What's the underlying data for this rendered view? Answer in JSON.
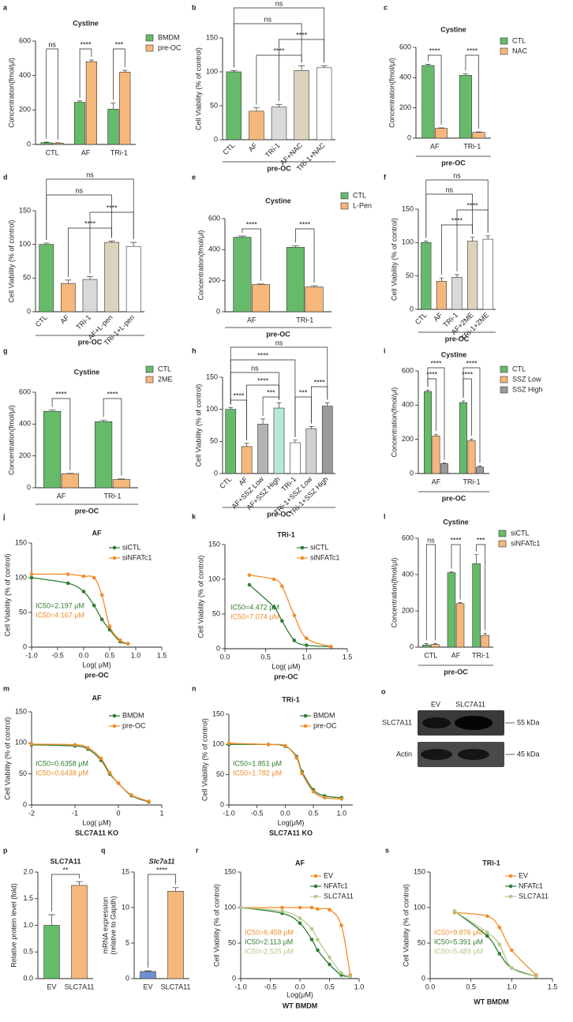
{
  "chart_data": [
    {
      "type": "bar",
      "panel": "a",
      "title": "Cystine",
      "ylabel": "Concentration(fmol/μl)",
      "categories": [
        "CTL",
        "AF",
        "TRi-1"
      ],
      "series": [
        {
          "name": "BMDM",
          "color": "#66bb6a",
          "values": [
            10,
            245,
            205
          ],
          "errors": [
            3,
            8,
            35
          ]
        },
        {
          "name": "pre-OC",
          "color": "#f6b77b",
          "values": [
            8,
            480,
            420
          ],
          "errors": [
            2,
            10,
            10
          ]
        }
      ],
      "ylim": [
        0,
        600
      ],
      "yticks": [
        0,
        200,
        400,
        600
      ],
      "brackets": [
        "ns",
        "****",
        "***"
      ]
    },
    {
      "type": "bar",
      "panel": "b",
      "ylabel": "Cell Viability (% of control)",
      "categories": [
        "CTL",
        "AF",
        "TRi-1",
        "AF+NAC",
        "TRi-1+NAC"
      ],
      "values": [
        100,
        42,
        48,
        102,
        106
      ],
      "errors": [
        2,
        5,
        4,
        7,
        3
      ],
      "colors": [
        "#66bb6a",
        "#f6b77b",
        "#d9d9d9",
        "#ddd3bd",
        "#ffffff"
      ],
      "ylim": [
        0,
        150
      ],
      "yticks": [
        0,
        50,
        100,
        150
      ],
      "group": "pre-OC",
      "brackets": [
        "ns",
        "ns",
        "****",
        "****"
      ]
    },
    {
      "type": "bar",
      "panel": "c",
      "title": "Cystine",
      "ylabel": "Concentration(fmol/μl)",
      "categories": [
        "AF",
        "TRi-1"
      ],
      "series": [
        {
          "name": "CTL",
          "color": "#66bb6a",
          "values": [
            480,
            415
          ],
          "errors": [
            8,
            10
          ]
        },
        {
          "name": "NAC",
          "color": "#f6b77b",
          "values": [
            65,
            38
          ],
          "errors": [
            3,
            3
          ]
        }
      ],
      "ylim": [
        0,
        600
      ],
      "yticks": [
        0,
        200,
        400,
        600
      ],
      "group": "pre-OC",
      "brackets": [
        "****",
        "****"
      ]
    },
    {
      "type": "bar",
      "panel": "d",
      "ylabel": "Cell Viability (% of control)",
      "categories": [
        "CTL",
        "AF",
        "TRi-1",
        "AF+L-pen",
        "TRi-1+L-pen"
      ],
      "values": [
        100,
        42,
        48,
        103,
        97
      ],
      "errors": [
        2,
        5,
        4,
        2,
        6
      ],
      "colors": [
        "#66bb6a",
        "#f6b77b",
        "#d9d9d9",
        "#ddd3bd",
        "#ffffff"
      ],
      "ylim": [
        0,
        150
      ],
      "yticks": [
        0,
        50,
        100,
        150
      ],
      "group": "pre-OC",
      "brackets": [
        "ns",
        "ns",
        "****",
        "****"
      ]
    },
    {
      "type": "bar",
      "panel": "e",
      "title": "Cystine",
      "ylabel": "Concentration(fmol/μl)",
      "categories": [
        "AF",
        "TRi-1"
      ],
      "series": [
        {
          "name": "CTL",
          "color": "#66bb6a",
          "values": [
            480,
            415
          ],
          "errors": [
            8,
            10
          ]
        },
        {
          "name": "L-Pen",
          "color": "#f6b77b",
          "values": [
            175,
            160
          ],
          "errors": [
            4,
            8
          ]
        }
      ],
      "ylim": [
        0,
        600
      ],
      "yticks": [
        0,
        200,
        400,
        600
      ],
      "group": "pre-OC",
      "brackets": [
        "****",
        "****"
      ]
    },
    {
      "type": "bar",
      "panel": "f",
      "ylabel": "Cell Viability (% of control)",
      "categories": [
        "CTL",
        "AF",
        "TRi-1",
        "AF+2ME",
        "TRi-1+2ME"
      ],
      "values": [
        100,
        42,
        48,
        102,
        105
      ],
      "errors": [
        2,
        5,
        4,
        6,
        5
      ],
      "colors": [
        "#66bb6a",
        "#f6b77b",
        "#d9d9d9",
        "#ddd3bd",
        "#ffffff"
      ],
      "ylim": [
        0,
        150
      ],
      "yticks": [
        0,
        50,
        100,
        150
      ],
      "group": "pre-OC",
      "brackets": [
        "ns",
        "ns",
        "****",
        "****"
      ]
    },
    {
      "type": "bar",
      "panel": "g",
      "title": "Cystine",
      "ylabel": "Concentration(fmol/μl)",
      "categories": [
        "AF",
        "TRi-1"
      ],
      "series": [
        {
          "name": "CTL",
          "color": "#66bb6a",
          "values": [
            480,
            415
          ],
          "errors": [
            8,
            10
          ]
        },
        {
          "name": "2ME",
          "color": "#f6b77b",
          "values": [
            88,
            52
          ],
          "errors": [
            2,
            3
          ]
        }
      ],
      "ylim": [
        0,
        600
      ],
      "yticks": [
        0,
        200,
        400,
        600
      ],
      "group": "pre-OC",
      "brackets": [
        "****",
        "****"
      ]
    },
    {
      "type": "bar",
      "panel": "h",
      "ylabel": "Cell Viability (% of control)",
      "categories": [
        "CTL",
        "AF",
        "AF+SSZ Low",
        "AF+SSZ High",
        "TRi-1",
        "TRi-1+SSZ Low",
        "TRi-1+SSZ High"
      ],
      "values": [
        100,
        42,
        77,
        102,
        48,
        70,
        105
      ],
      "errors": [
        3,
        5,
        8,
        8,
        4,
        3,
        5
      ],
      "colors": [
        "#66bb6a",
        "#f6b77b",
        "#b3b3b3",
        "#b8e8d6",
        "#ffffff",
        "#d0d0d0",
        "#9a9a9a"
      ],
      "ylim": [
        0,
        150
      ],
      "yticks": [
        0,
        50,
        100,
        150
      ],
      "group": "pre-OC",
      "brackets": [
        "ns",
        "****",
        "ns",
        "****",
        "****",
        "***",
        "***",
        "****"
      ]
    },
    {
      "type": "bar",
      "panel": "i",
      "title": "Cystine",
      "ylabel": "Concentration(fmol/μl)",
      "categories": [
        "AF",
        "TRi-1"
      ],
      "series": [
        {
          "name": "CTL",
          "color": "#66bb6a",
          "values": [
            480,
            415
          ],
          "errors": [
            8,
            10
          ]
        },
        {
          "name": "SSZ Low",
          "color": "#f6b77b",
          "values": [
            220,
            192
          ],
          "errors": [
            10,
            10
          ]
        },
        {
          "name": "SSZ High",
          "color": "#9a9a9a",
          "values": [
            58,
            38
          ],
          "errors": [
            3,
            6
          ]
        }
      ],
      "ylim": [
        0,
        600
      ],
      "yticks": [
        0,
        200,
        400,
        600
      ],
      "group": "pre-OC",
      "brackets": [
        "****",
        "****",
        "****",
        "****"
      ]
    },
    {
      "type": "line",
      "panel": "j",
      "title": "AF",
      "ylabel": "Cell Viability (% of control)",
      "xlabel": "Log( μM)",
      "group": "pre-OC",
      "x": [
        -1,
        -0.3,
        0,
        0.2,
        0.35,
        0.5,
        0.7,
        0.85
      ],
      "series": [
        {
          "name": "siCTL",
          "color": "#2e7d32",
          "values": [
            100,
            92,
            80,
            60,
            40,
            25,
            8,
            5
          ]
        },
        {
          "name": "siNFATc1",
          "color": "#f28c28",
          "values": [
            105,
            105,
            102,
            100,
            75,
            30,
            10,
            5
          ]
        }
      ],
      "annotations": [
        "IC50=2.197 μM",
        "IC50=4.167 μM"
      ],
      "xlim": [
        -1,
        1.5
      ],
      "xticks": [
        {
          "value": -1,
          "label": "-1.0"
        },
        {
          "value": -0.5,
          "label": "-0.5"
        },
        {
          "value": 0,
          "label": "0.0"
        },
        {
          "value": 0.5,
          "label": "0.5"
        },
        {
          "value": 1,
          "label": "1.0"
        },
        {
          "value": 1.5,
          "label": "1.5"
        }
      ],
      "ylim": [
        0,
        150
      ],
      "yticks": [
        0,
        50,
        100,
        150
      ]
    },
    {
      "type": "line",
      "panel": "k",
      "title": "TRi-1",
      "ylabel": "Cell Viability (% of control)",
      "xlabel": "Log( μM)",
      "group": "pre-OC",
      "x": [
        0.3,
        0.6,
        0.7,
        0.85,
        1.0,
        1.3
      ],
      "series": [
        {
          "name": "siCTL",
          "color": "#2e7d32",
          "values": [
            92,
            60,
            40,
            12,
            5,
            3
          ]
        },
        {
          "name": "siNFATc1",
          "color": "#f28c28",
          "values": [
            106,
            100,
            90,
            48,
            15,
            3
          ]
        }
      ],
      "annotations": [
        "IC50=4.472 μM",
        "IC50=7.074 μM"
      ],
      "xlim": [
        0,
        1.5
      ],
      "xticks": [
        {
          "value": 0,
          "label": "0.0"
        },
        {
          "value": 0.5,
          "label": "0.5"
        },
        {
          "value": 1,
          "label": "1.0"
        },
        {
          "value": 1.5,
          "label": "1.5"
        }
      ],
      "ylim": [
        0,
        150
      ],
      "yticks": [
        0,
        50,
        100,
        150
      ]
    },
    {
      "type": "bar",
      "panel": "l",
      "title": "Cystine",
      "ylabel": "Concentration(fmol/μl)",
      "categories": [
        "CTL",
        "AF",
        "TRi-1"
      ],
      "series": [
        {
          "name": "siCTL",
          "color": "#66bb6a",
          "values": [
            12,
            410,
            460
          ],
          "errors": [
            8,
            5,
            50
          ]
        },
        {
          "name": "siNFATc1",
          "color": "#f6b77b",
          "values": [
            15,
            240,
            65
          ],
          "errors": [
            5,
            5,
            12
          ]
        }
      ],
      "ylim": [
        0,
        600
      ],
      "yticks": [
        0,
        200,
        400,
        600
      ],
      "group": "pre-OC",
      "brackets": [
        "ns",
        "****",
        "***"
      ]
    },
    {
      "type": "line",
      "panel": "m",
      "title": "AF",
      "ylabel": "Cell Viability (% of control)",
      "xlabel": "Log( μM)",
      "group": "SLC7A11 KO",
      "x": [
        -2,
        -1,
        -0.7,
        -0.4,
        -0.2,
        0,
        0.3,
        0.7
      ],
      "series": [
        {
          "name": "BMDM",
          "color": "#2e7d32",
          "values": [
            97,
            95,
            90,
            72,
            50,
            35,
            15,
            5
          ]
        },
        {
          "name": "pre-OC",
          "color": "#f28c28",
          "values": [
            98,
            97,
            92,
            75,
            52,
            35,
            16,
            6
          ]
        }
      ],
      "annotations": [
        "IC50=0.6358 μM",
        "IC50=0.6438 μM"
      ],
      "xlim": [
        -2,
        1
      ],
      "xticks": [
        -2,
        -1,
        0,
        1
      ],
      "ylim": [
        0,
        150
      ],
      "yticks": [
        0,
        50,
        100,
        150
      ]
    },
    {
      "type": "line",
      "panel": "n",
      "title": "TRi-1",
      "ylabel": "Cell Viability (% of control)",
      "xlabel": "Log(μM)",
      "group": "SLC7A11 KO",
      "x": [
        -1,
        -0.3,
        0,
        0.2,
        0.3,
        0.5,
        0.7,
        1.0
      ],
      "series": [
        {
          "name": "BMDM",
          "color": "#2e7d32",
          "values": [
            100,
            100,
            97,
            80,
            55,
            25,
            15,
            12
          ]
        },
        {
          "name": "pre-OC",
          "color": "#f28c28",
          "values": [
            102,
            100,
            98,
            78,
            52,
            22,
            12,
            10
          ]
        }
      ],
      "annotations": [
        "IC50=1.851 μM",
        "IC50=1.782 μM"
      ],
      "xlim": [
        -1,
        1.2
      ],
      "xticks": [
        {
          "value": -1,
          "label": "-1.0"
        },
        {
          "value": -0.5,
          "label": "-0.5"
        },
        {
          "value": 0,
          "label": "0.0"
        },
        {
          "value": 0.5,
          "label": "0.5"
        },
        {
          "value": 1,
          "label": "1.0"
        }
      ],
      "ylim": [
        0,
        150
      ],
      "yticks": [
        0,
        50,
        100,
        150
      ]
    },
    {
      "type": "bar",
      "panel": "p",
      "title": "SLC7A11",
      "ylabel": "Relative protein level (fold)",
      "categories": [
        "EV",
        "SLC7A11"
      ],
      "values": [
        1.0,
        1.75
      ],
      "errors": [
        0.2,
        0.07
      ],
      "colors": [
        "#66bb6a",
        "#f6b77b"
      ],
      "ylim": [
        0,
        2
      ],
      "yticks": [
        {
          "value": 0,
          "label": "0.0"
        },
        {
          "value": 0.5,
          "label": "0.5"
        },
        {
          "value": 1,
          "label": "1.0"
        },
        {
          "value": 1.5,
          "label": "1.5"
        },
        {
          "value": 2,
          "label": "2.0"
        }
      ],
      "brackets": [
        "**"
      ]
    },
    {
      "type": "bar",
      "panel": "q",
      "title": "Slc7a11",
      "ylabel": [
        "mRNA expression",
        "(relative to Gapdh)"
      ],
      "categories": [
        "EV",
        "SLC7A11"
      ],
      "values": [
        1,
        12.3
      ],
      "errors": [
        0.1,
        0.5
      ],
      "colors": [
        "#6f8fcf",
        "#f6b77b"
      ],
      "ylim": [
        0,
        15
      ],
      "yticks": [
        0,
        5,
        10,
        15
      ],
      "brackets": [
        "****"
      ]
    },
    {
      "type": "line",
      "panel": "r",
      "title": "AF",
      "ylabel": "Cell Viability (% of control)",
      "xlabel": "Log(μM)",
      "group": "WT BMDM",
      "x": [
        -1,
        -0.3,
        0,
        0.2,
        0.3,
        0.5,
        0.7,
        0.85
      ],
      "series": [
        {
          "name": "EV",
          "color": "#f28c28",
          "values": [
            100,
            100,
            100,
            100,
            98,
            97,
            75,
            5
          ]
        },
        {
          "name": "NFATc1",
          "color": "#2e7d32",
          "values": [
            100,
            92,
            78,
            55,
            40,
            20,
            5,
            3
          ]
        },
        {
          "name": "SLC7A11",
          "color": "#b5c98a",
          "values": [
            100,
            95,
            85,
            70,
            55,
            30,
            8,
            3
          ]
        }
      ],
      "annotations": [
        "IC50=6.459 μM",
        "IC50=2.113 μM",
        "IC50=2.525 μM"
      ],
      "xlim": [
        -1,
        1
      ],
      "xticks": [
        {
          "value": -1,
          "label": "-1.0"
        },
        {
          "value": -0.5,
          "label": "-0.5"
        },
        {
          "value": 0,
          "label": "0.0"
        },
        {
          "value": 0.5,
          "label": "0.5"
        },
        {
          "value": 1,
          "label": "1.0"
        }
      ],
      "ylim": [
        0,
        150
      ],
      "yticks": [
        0,
        50,
        100,
        150
      ]
    },
    {
      "type": "line",
      "panel": "s",
      "title": "TRi-1",
      "ylabel": "Cell Viability (% of control)",
      "group": "WT BMDM",
      "x": [
        0.3,
        0.7,
        0.85,
        1.0,
        1.3
      ],
      "series": [
        {
          "name": "EV",
          "color": "#f28c28",
          "values": [
            93,
            88,
            72,
            40,
            5
          ]
        },
        {
          "name": "NFATc1",
          "color": "#2e7d32",
          "values": [
            95,
            60,
            35,
            15,
            3
          ]
        },
        {
          "name": "SLC7A11",
          "color": "#b5c98a",
          "values": [
            95,
            65,
            48,
            15,
            3
          ]
        }
      ],
      "annotations": [
        "IC50=9.876 μM",
        "IC50=5.391 μM",
        "IC50=5.489 μM"
      ],
      "xlim": [
        0,
        1.5
      ],
      "xticks": [
        {
          "value": 0,
          "label": "0.0"
        },
        {
          "value": 0.5,
          "label": "0.5"
        },
        {
          "value": 1,
          "label": "1.0"
        },
        {
          "value": 1.5,
          "label": "1.5"
        }
      ],
      "ylim": [
        0,
        150
      ],
      "yticks": [
        0,
        50,
        100,
        150
      ]
    }
  ],
  "blot": {
    "panel": "o",
    "lanes": [
      "EV",
      "SLC7A11"
    ],
    "bands": [
      {
        "name": "SLC7A11",
        "size": "55 kDa"
      },
      {
        "name": "Actin",
        "size": "45 kDa"
      }
    ]
  }
}
